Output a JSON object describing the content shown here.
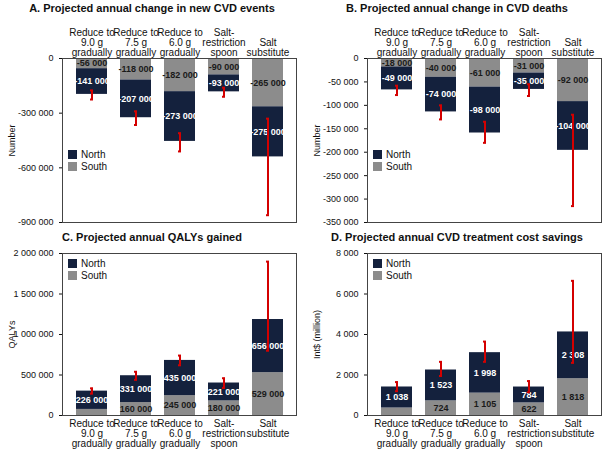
{
  "chart_data": [
    {
      "type": "bar",
      "title": "A. Projected annual change in new CVD events",
      "categories": [
        "Reduce to 9.0 g gradually",
        "Reduce to 7.5 g gradually",
        "Reduce to 6.0 g gradually",
        "Salt-restriction spoon",
        "Salt substitute"
      ],
      "series": [
        {
          "name": "North",
          "color": "#14213d",
          "values": [
            -141000,
            -207000,
            -273000,
            -93000,
            -275000
          ],
          "value_labels": [
            "-141 000",
            "-207 000",
            "-273 000",
            "-93 000",
            "-275 000"
          ]
        },
        {
          "name": "South",
          "color": "#8c8c8c",
          "values": [
            -56000,
            -118000,
            -182000,
            -90000,
            -265000
          ],
          "value_labels": [
            "-56 000",
            "-118 000",
            "-182 000",
            "-90 000",
            "-265 000"
          ]
        }
      ],
      "error_bars": {
        "low": [
          -225000,
          -365000,
          -510000,
          -210000,
          -860000
        ],
        "high": [
          -175000,
          -290000,
          -410000,
          -160000,
          -330000
        ]
      },
      "ylabel": "Number",
      "ylim": [
        -900000,
        0
      ],
      "yticks": [
        0,
        {
          "value": -300000,
          "label": "-300 000"
        },
        {
          "value": -600000,
          "label": "-600 000"
        },
        {
          "value": -900000,
          "label": "-900 000"
        }
      ],
      "stacked": true,
      "data_labels": true,
      "legend": "center left"
    },
    {
      "type": "bar",
      "title": "B. Projected annual change in CVD deaths",
      "categories": [
        "Reduce to 9.0 g gradually",
        "Reduce to 7.5 g gradually",
        "Reduce to 6.0 g gradually",
        "Salt-restriction spoon",
        "Salt substitute"
      ],
      "series": [
        {
          "name": "North",
          "color": "#14213d",
          "values": [
            -49000,
            -74000,
            -98000,
            -35000,
            -104000
          ],
          "value_labels": [
            "-49 000",
            "-74 000",
            "-98 000",
            "-35 000",
            "-104 000"
          ]
        },
        {
          "name": "South",
          "color": "#8c8c8c",
          "values": [
            -18000,
            -40000,
            -61000,
            -31000,
            -92000
          ],
          "value_labels": [
            "-18 000",
            "-40 000",
            "-61 000",
            "-31 000",
            "-92 000"
          ]
        }
      ],
      "error_bars": {
        "low": [
          -78000,
          -130000,
          -180000,
          -80000,
          -315000
        ],
        "high": [
          -58000,
          -100000,
          -135000,
          -55000,
          -120000
        ]
      },
      "ylabel": "Number",
      "ylim": [
        -350000,
        0
      ],
      "yticks": [
        0,
        {
          "value": -50000,
          "label": "-50 000"
        },
        {
          "value": -100000,
          "label": "-100 000"
        },
        {
          "value": -150000,
          "label": "-150 000"
        },
        {
          "value": -200000,
          "label": "-200 000"
        },
        {
          "value": -250000,
          "label": "-250 000"
        },
        {
          "value": -300000,
          "label": "-300 000"
        },
        {
          "value": -350000,
          "label": "-350 000"
        }
      ],
      "stacked": true,
      "data_labels": true,
      "legend": "center left"
    },
    {
      "type": "bar",
      "title": "C. Projected annual QALYs gained",
      "categories": [
        "Reduce to 9.0 g gradually",
        "Reduce to 7.5 g gradually",
        "Reduce to 6.0 g gradually",
        "Salt-restriction spoon",
        "Salt substitute"
      ],
      "series": [
        {
          "name": "North",
          "color": "#14213d",
          "values": [
            226000,
            331000,
            435000,
            221000,
            656000
          ],
          "value_labels": [
            "226 000",
            "331 000",
            "435 000",
            "221 000",
            "656 000"
          ]
        },
        {
          "name": "South",
          "color": "#8c8c8c",
          "values": [
            75000,
            160000,
            245000,
            180000,
            529000
          ],
          "value_labels": [
            null,
            "160 000",
            "245 000",
            "180 000",
            "529 000"
          ]
        }
      ],
      "error_bars": {
        "low": [
          270000,
          440000,
          620000,
          340000,
          800000
        ],
        "high": [
          335000,
          540000,
          740000,
          460000,
          1900000
        ]
      },
      "ylabel": "QALYs",
      "ylim": [
        0,
        2000000
      ],
      "yticks": [
        0,
        {
          "value": 500000,
          "label": "500 000"
        },
        {
          "value": 1000000,
          "label": "1 000 000"
        },
        {
          "value": 1500000,
          "label": "1 500 000"
        },
        {
          "value": 2000000,
          "label": "2 000 000"
        }
      ],
      "stacked": true,
      "data_labels": true,
      "legend": "upper left"
    },
    {
      "type": "bar",
      "title": "D. Projected annual CVD treatment cost savings",
      "categories": [
        "Reduce to 9.0 g gradually",
        "Reduce to 7.5 g gradually",
        "Reduce to 6.0 g gradually",
        "Salt-restriction spoon",
        "Salt substitute"
      ],
      "series": [
        {
          "name": "North",
          "color": "#14213d",
          "values": [
            1038,
            1523,
            1998,
            784,
            2308
          ],
          "value_labels": [
            "1 038",
            "1 523",
            "1 998",
            "784",
            "2 308"
          ]
        },
        {
          "name": "South",
          "color": "#8c8c8c",
          "values": [
            370,
            724,
            1105,
            622,
            1818
          ],
          "value_labels": [
            null,
            "724",
            "1 105",
            "622",
            "1 818"
          ]
        }
      ],
      "error_bars": {
        "low": [
          1200,
          1950,
          2650,
          1150,
          2600
        ],
        "high": [
          1650,
          2650,
          3650,
          1700,
          6650
        ]
      },
      "ylabel": "Int$ (million)",
      "ylim": [
        0,
        8000
      ],
      "yticks": [
        0,
        {
          "value": 2000,
          "label": "2 000"
        },
        {
          "value": 4000,
          "label": "4 000"
        },
        {
          "value": 6000,
          "label": "6 000"
        },
        {
          "value": 8000,
          "label": "8 000"
        }
      ],
      "stacked": true,
      "data_labels": true,
      "legend": "upper left"
    }
  ]
}
